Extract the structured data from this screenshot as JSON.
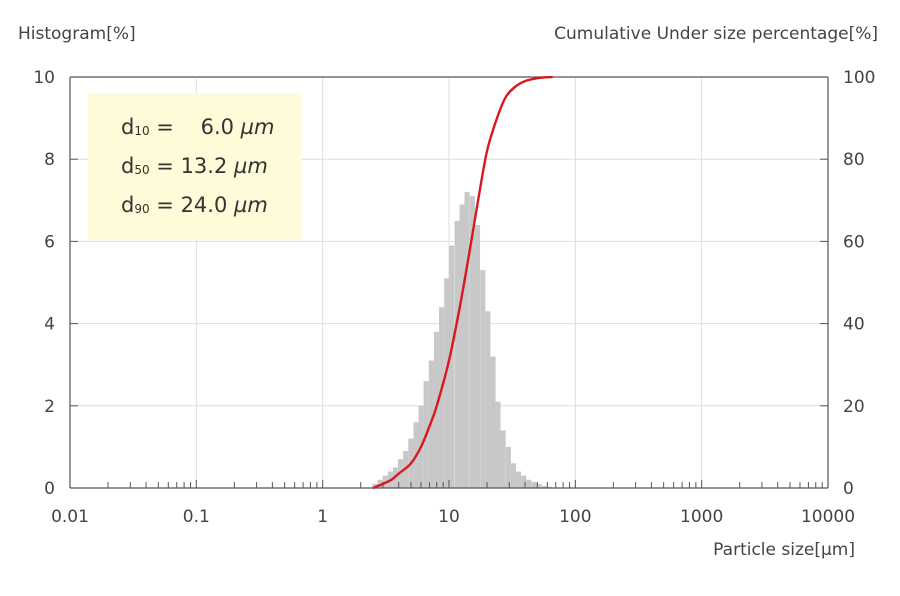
{
  "left_axis_title": "Histogram[%]",
  "right_axis_title": "Cumulative Under size percentage[%]",
  "x_axis_title": "Particle size[µm]",
  "stats": [
    {
      "symbol": "d",
      "sub": "10",
      "eq": " =    6.0 ",
      "unit": "µm"
    },
    {
      "symbol": "d",
      "sub": "50",
      "eq": " = 13.2 ",
      "unit": "µm"
    },
    {
      "symbol": "d",
      "sub": "90",
      "eq": " = 24.0 ",
      "unit": "µm"
    }
  ],
  "colors": {
    "histogram": "#c8c8c8",
    "cumulative": "#d7191f",
    "stats_box": "#fdfbd8",
    "grid": "#dddddd",
    "axis": "#555555"
  },
  "chart_data": {
    "type": "bar",
    "x_scale": "log",
    "xlim": [
      0.01,
      10000
    ],
    "x_ticks": [
      "0.01",
      "0.1",
      "1",
      "10",
      "100",
      "1000",
      "10000"
    ],
    "y_left": {
      "lim": [
        0,
        10
      ],
      "ticks": [
        "0",
        "2",
        "4",
        "6",
        "8",
        "10"
      ]
    },
    "y_right": {
      "lim": [
        0,
        100
      ],
      "ticks": [
        "0",
        "20",
        "40",
        "60",
        "80",
        "100"
      ]
    },
    "grid": true,
    "series": [
      {
        "kind": "histogram",
        "axis": "left",
        "x": [
          2.59,
          2.85,
          3.13,
          3.43,
          3.77,
          4.14,
          4.54,
          4.99,
          5.48,
          6.01,
          6.6,
          7.25,
          7.96,
          8.74,
          9.6,
          10.5,
          11.6,
          12.7,
          13.9,
          15.3,
          16.8,
          18.5,
          20.3,
          22.3,
          24.4,
          26.8,
          29.5,
          32.4,
          35.5,
          39.0,
          42.8,
          47.0,
          51.6,
          56.7,
          62.3
        ],
        "values": [
          0.1,
          0.2,
          0.3,
          0.4,
          0.5,
          0.7,
          0.9,
          1.2,
          1.6,
          2.0,
          2.6,
          3.1,
          3.8,
          4.4,
          5.1,
          5.9,
          6.5,
          6.9,
          7.2,
          7.1,
          6.4,
          5.3,
          4.3,
          3.2,
          2.1,
          1.4,
          1.0,
          0.6,
          0.4,
          0.3,
          0.2,
          0.15,
          0.1,
          0.05,
          0.03
        ]
      },
      {
        "kind": "cumulative",
        "axis": "right",
        "x": [
          2.5,
          3.0,
          3.5,
          4.0,
          5.0,
          6.0,
          7.0,
          8.0,
          10.0,
          12.0,
          13.2,
          15.0,
          17.0,
          20.0,
          24.0,
          28.0,
          33.0,
          40.0,
          50.0,
          60.0,
          66.0
        ],
        "values": [
          0,
          1,
          2,
          3.5,
          6,
          10,
          15,
          20,
          31,
          43,
          50,
          60,
          70,
          82,
          90,
          95,
          97.5,
          99,
          99.7,
          99.95,
          100
        ]
      }
    ]
  }
}
